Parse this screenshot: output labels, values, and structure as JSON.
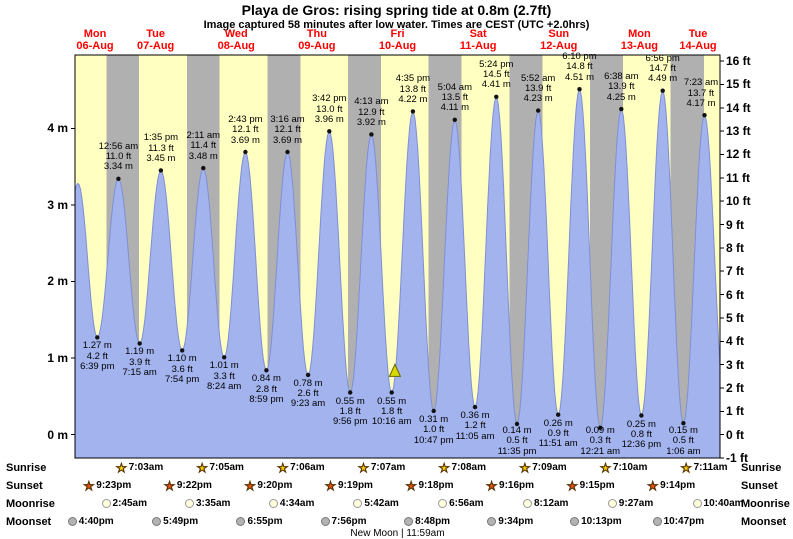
{
  "colors": {
    "day_bg": "#ffffc2",
    "night_bg": "#b0b0b0",
    "tide_fill": "#a3b3ee",
    "tide_stroke": "#7f8fd4",
    "day_label": "#ff0000",
    "sunrise_star": "#ffd700",
    "sunset_star": "#f05010",
    "marker_fill": "#d8d800",
    "axis_text": "#000000"
  },
  "chart_data": {
    "type": "area",
    "title": "Playa de Gros: rising  spring tide at 0.8m (2.7ft)",
    "subtitle": "Image captured 58 minutes after low water. Times are CEST (UTC +2.0hrs)",
    "xlim": [
      "Mon 06-Aug 12:00",
      "Tue 14-Aug 12:00"
    ],
    "ylim_m": [
      -0.305,
      4.96
    ],
    "grid": "off",
    "legend": "none",
    "t_reference": "hours since Mon 06-Aug 00:00",
    "x_axis": {
      "days": [
        {
          "name": "Mon",
          "date": "06-Aug",
          "t_noon": 12
        },
        {
          "name": "Tue",
          "date": "07-Aug",
          "t_noon": 36
        },
        {
          "name": "Wed",
          "date": "08-Aug",
          "t_noon": 60
        },
        {
          "name": "Thu",
          "date": "09-Aug",
          "t_noon": 84
        },
        {
          "name": "Fri",
          "date": "10-Aug",
          "t_noon": 108
        },
        {
          "name": "Sat",
          "date": "11-Aug",
          "t_noon": 132
        },
        {
          "name": "Sun",
          "date": "12-Aug",
          "t_noon": 156
        },
        {
          "name": "Mon",
          "date": "13-Aug",
          "t_noon": 180
        },
        {
          "name": "Tue",
          "date": "14-Aug",
          "t_noon": 204
        }
      ]
    },
    "y_axis_left": {
      "unit": "m",
      "values": [
        4,
        3,
        2,
        1,
        0
      ]
    },
    "y_axis_right": {
      "unit": "ft",
      "values": [
        16,
        15,
        14,
        13,
        12,
        11,
        10,
        9,
        8,
        7,
        6,
        5,
        4,
        3,
        2,
        1,
        0,
        -1
      ]
    },
    "tides": [
      {
        "type": "low",
        "t": 18.65,
        "height_m": 1.27,
        "time": "6:39 pm",
        "ft": "4.2 ft",
        "m": "1.27 m"
      },
      {
        "type": "high",
        "t": 24.93,
        "height_m": 3.34,
        "time": "12:56 am",
        "ft": "11.0 ft",
        "m": "3.34 m"
      },
      {
        "type": "low",
        "t": 31.25,
        "height_m": 1.19,
        "time": "7:15 am",
        "ft": "3.9 ft",
        "m": "1.19 m"
      },
      {
        "type": "high",
        "t": 37.58,
        "height_m": 3.45,
        "time": "1:35 pm",
        "ft": "11.3 ft",
        "m": "3.45 m"
      },
      {
        "type": "low",
        "t": 43.9,
        "height_m": 1.1,
        "time": "7:54 pm",
        "ft": "3.6 ft",
        "m": "1.10 m"
      },
      {
        "type": "high",
        "t": 50.18,
        "height_m": 3.48,
        "time": "2:11 am",
        "ft": "11.4 ft",
        "m": "3.48 m"
      },
      {
        "type": "low",
        "t": 56.4,
        "height_m": 1.01,
        "time": "8:24 am",
        "ft": "3.3 ft",
        "m": "1.01 m"
      },
      {
        "type": "high",
        "t": 62.72,
        "height_m": 3.69,
        "time": "2:43 pm",
        "ft": "12.1 ft",
        "m": "3.69 m"
      },
      {
        "type": "low",
        "t": 68.98,
        "height_m": 0.84,
        "time": "8:59 pm",
        "ft": "2.8 ft",
        "m": "0.84 m"
      },
      {
        "type": "high",
        "t": 75.27,
        "height_m": 3.69,
        "time": "3:16 am",
        "ft": "12.1 ft",
        "m": "3.69 m"
      },
      {
        "type": "low",
        "t": 81.38,
        "height_m": 0.78,
        "time": "9:23 am",
        "ft": "2.6 ft",
        "m": "0.78 m"
      },
      {
        "type": "high",
        "t": 87.7,
        "height_m": 3.96,
        "time": "3:42 pm",
        "ft": "13.0 ft",
        "m": "3.96 m"
      },
      {
        "type": "low",
        "t": 93.93,
        "height_m": 0.55,
        "time": "9:56 pm",
        "ft": "1.8 ft",
        "m": "0.55 m"
      },
      {
        "type": "high",
        "t": 100.22,
        "height_m": 3.92,
        "time": "4:13 am",
        "ft": "12.9 ft",
        "m": "3.92 m"
      },
      {
        "type": "low",
        "t": 106.27,
        "height_m": 0.55,
        "time": "10:16 am",
        "ft": "1.8 ft",
        "m": "0.55 m"
      },
      {
        "type": "high",
        "t": 112.58,
        "height_m": 4.22,
        "time": "4:35 pm",
        "ft": "13.8 ft",
        "m": "4.22 m"
      },
      {
        "type": "low",
        "t": 118.78,
        "height_m": 0.31,
        "time": "10:47 pm",
        "ft": "1.0 ft",
        "m": "0.31 m"
      },
      {
        "type": "high",
        "t": 125.07,
        "height_m": 4.11,
        "time": "5:04 am",
        "ft": "13.5 ft",
        "m": "4.11 m"
      },
      {
        "type": "low",
        "t": 131.08,
        "height_m": 0.36,
        "time": "11:05 am",
        "ft": "1.2 ft",
        "m": "0.36 m"
      },
      {
        "type": "high",
        "t": 137.4,
        "height_m": 4.41,
        "time": "5:24 pm",
        "ft": "14.5 ft",
        "m": "4.41 m"
      },
      {
        "type": "low",
        "t": 143.58,
        "height_m": 0.14,
        "time": "11:35 pm",
        "ft": "0.5 ft",
        "m": "0.14 m"
      },
      {
        "type": "high",
        "t": 149.87,
        "height_m": 4.23,
        "time": "5:52 am",
        "ft": "13.9 ft",
        "m": "4.23 m"
      },
      {
        "type": "low",
        "t": 155.85,
        "height_m": 0.26,
        "time": "11:51 am",
        "ft": "0.9 ft",
        "m": "0.26 m"
      },
      {
        "type": "high",
        "t": 162.17,
        "height_m": 4.51,
        "time": "6:10 pm",
        "ft": "14.8 ft",
        "m": "4.51 m"
      },
      {
        "type": "low",
        "t": 168.35,
        "height_m": 0.09,
        "time": "12:21 am",
        "ft": "0.3 ft",
        "m": "0.09 m"
      },
      {
        "type": "high",
        "t": 174.63,
        "height_m": 4.25,
        "time": "6:38 am",
        "ft": "13.9 ft",
        "m": "4.25 m"
      },
      {
        "type": "low",
        "t": 180.6,
        "height_m": 0.25,
        "time": "12:36 pm",
        "ft": "0.8 ft",
        "m": "0.25 m"
      },
      {
        "type": "high",
        "t": 186.93,
        "height_m": 4.49,
        "time": "6:56 pm",
        "ft": "14.7 ft",
        "m": "4.49 m"
      },
      {
        "type": "low",
        "t": 193.1,
        "height_m": 0.15,
        "time": "1:06 am",
        "ft": "0.5 ft",
        "m": "0.15 m"
      },
      {
        "type": "high",
        "t": 199.38,
        "height_m": 4.17,
        "time": "7:23 am",
        "ft": "13.7 ft",
        "m": "4.17 m"
      }
    ],
    "curve_support": [
      {
        "t": 6.6,
        "height_m": 1.35
      },
      {
        "t": 12.92,
        "height_m": 3.28
      },
      {
        "t": 205.6,
        "height_m": 0.3
      }
    ],
    "current_marker": {
      "t": 107.23,
      "height_m": 0.8
    },
    "sun_moon": {
      "rows": [
        {
          "id": "sunrise",
          "label": "Sunrise",
          "icon": "star",
          "entries": [
            {
              "t": 31.05,
              "time": "7:03am"
            },
            {
              "t": 55.08,
              "time": "7:05am"
            },
            {
              "t": 79.1,
              "time": "7:06am"
            },
            {
              "t": 103.12,
              "time": "7:07am"
            },
            {
              "t": 127.13,
              "time": "7:08am"
            },
            {
              "t": 151.15,
              "time": "7:09am"
            },
            {
              "t": 175.17,
              "time": "7:10am"
            },
            {
              "t": 199.18,
              "time": "7:11am"
            }
          ]
        },
        {
          "id": "sunset",
          "label": "Sunset",
          "icon": "star",
          "entries": [
            {
              "t": 21.38,
              "time": "9:23pm"
            },
            {
              "t": 45.37,
              "time": "9:22pm"
            },
            {
              "t": 69.33,
              "time": "9:20pm"
            },
            {
              "t": 93.32,
              "time": "9:19pm"
            },
            {
              "t": 117.3,
              "time": "9:18pm"
            },
            {
              "t": 141.27,
              "time": "9:16pm"
            },
            {
              "t": 165.25,
              "time": "9:15pm"
            },
            {
              "t": 189.23,
              "time": "9:14pm"
            }
          ]
        },
        {
          "id": "moonrise",
          "label": "Moonrise",
          "icon": "circle",
          "entries": [
            {
              "t": 26.75,
              "time": "2:45am"
            },
            {
              "t": 51.58,
              "time": "3:35am"
            },
            {
              "t": 76.57,
              "time": "4:34am"
            },
            {
              "t": 101.7,
              "time": "5:42am"
            },
            {
              "t": 126.93,
              "time": "6:56am"
            },
            {
              "t": 152.2,
              "time": "8:12am"
            },
            {
              "t": 177.45,
              "time": "9:27am"
            },
            {
              "t": 202.67,
              "time": "10:40am"
            }
          ]
        },
        {
          "id": "moonset",
          "label": "Moonset",
          "icon": "circle",
          "entries": [
            {
              "t": 16.67,
              "time": "4:40pm"
            },
            {
              "t": 41.82,
              "time": "5:49pm"
            },
            {
              "t": 66.92,
              "time": "6:55pm"
            },
            {
              "t": 91.93,
              "time": "7:56pm"
            },
            {
              "t": 116.8,
              "time": "8:48pm"
            },
            {
              "t": 141.57,
              "time": "9:34pm"
            },
            {
              "t": 166.22,
              "time": "10:13pm"
            },
            {
              "t": 190.78,
              "time": "10:47pm"
            }
          ]
        }
      ]
    },
    "new_moon_label": "New Moon | 11:59am"
  }
}
